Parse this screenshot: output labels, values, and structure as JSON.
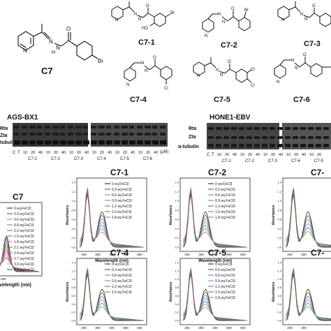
{
  "structures": {
    "C7": "C7",
    "C7_1": "C7-1",
    "C7_2": "C7-2",
    "C7_3": "C7-3",
    "C7_4": "C7-4",
    "C7_5": "C7-5",
    "C7_6": "C7-6",
    "atoms": {
      "N": "N",
      "H": "H",
      "O": "O",
      "Br": "Br",
      "HO": "HO",
      "Cl": "Cl"
    }
  },
  "blots": {
    "left": {
      "title": "AGS-BX1",
      "row_labels": [
        "Rta",
        "Zta",
        "tubulin"
      ],
      "dose_labels": [
        "10",
        "20",
        "40",
        "10",
        "20",
        "40",
        "10",
        "20",
        "40",
        "10",
        "20",
        "40",
        "10",
        "20",
        "40",
        "10",
        "20",
        "40"
      ],
      "unit": "(μM)",
      "group_labels": [
        "C7-1",
        "C7-2",
        "C7-3",
        "C7-4",
        "C7-5",
        "C7-6"
      ],
      "lane_left": "C",
      "lane_right": "T"
    },
    "right": {
      "title": "HONE1-EBV",
      "row_labels": [
        "Rta",
        "Zta",
        "α-tubulin"
      ],
      "dose_labels": [
        "10",
        "20",
        "40",
        "10",
        "20",
        "40",
        "10",
        "20",
        "40",
        "10",
        "20",
        "40",
        "10",
        "20"
      ],
      "group_labels": [
        "C7-1",
        "C7-2",
        "C7-3",
        "C7-4",
        "C7-5"
      ],
      "lane_left": "C",
      "lane_right": "T"
    }
  },
  "spectra": {
    "panels": [
      {
        "title": "C7",
        "ylabel": "",
        "xlabel": "avelength (nm)",
        "yticks": [],
        "xticks": [
          "500",
          "600"
        ],
        "legend": [
          "0 eq FeCl3",
          "0.3 eq FeCl3",
          "0.6 eq FeCl3",
          "0.9 eq FeCl3",
          "1.2 eq FeCl3",
          "1.5 eq FeCl3",
          "1.8 eq FeCl3",
          "2.1 eq FeCl3",
          "2.4 eq FeCl3",
          "2.7 eq FeCl3",
          "3.0 eq FeCl3",
          "3.3 eq FeCl3"
        ]
      },
      {
        "title": "C7-1",
        "ylabel": "Absorbance",
        "xlabel": "Wavelength (nm)",
        "yticks": [
          "0.0",
          "0.2",
          "0.4",
          "0.6",
          "0.8",
          "1.0",
          "1.2",
          "1.4"
        ],
        "xticks": [
          "200",
          "300",
          "400",
          "500",
          "600"
        ],
        "legend": [
          "0 eq FeCl3",
          "0.3 eq FeCl3",
          "0.6 eq FeCl3",
          "0.9 eq FeCl3",
          "1.2 eq FeCl3",
          "1.5 eq FeCl3",
          "1.8 eq FeCl3"
        ]
      },
      {
        "title": "C7-2",
        "ylabel": "Absorbance",
        "xlabel": "Wavelength (nm)",
        "yticks": [
          "0.0",
          "0.2",
          "0.4",
          "0.6",
          "0.8",
          "1.0",
          "1.2",
          "1.4"
        ],
        "xticks": [
          "200",
          "300",
          "400",
          "500",
          "600"
        ],
        "legend": [
          "0 eq FeCl3",
          "0.3 eq FeCl3",
          "0.6 eq FeCl3",
          "0.9 eq FeCl3",
          "1.2 eq FeCl3",
          "1.5 eq FeCl3",
          "1.8 eq FeCl3"
        ]
      },
      {
        "title": "C7-",
        "ylabel": "Absorbance",
        "xlabel": "",
        "yticks": [
          "0.0",
          "0.2",
          "0.4",
          "0.6",
          "0.8",
          "1.0",
          "1.2",
          "1.4"
        ],
        "xticks": [
          "200",
          "300"
        ],
        "legend": []
      },
      {
        "title": "C7-4",
        "ylabel": "Absorbance",
        "xlabel": "Wavelength (nm)",
        "yticks": [
          "0.0",
          "0.2",
          "0.4",
          "0.6",
          "0.8",
          "1.0",
          "1.2",
          "1.4"
        ],
        "xticks": [
          "200",
          "300",
          "400",
          "500",
          "600"
        ],
        "legend": [
          "0 eq FeCl3",
          "0.3 eq FeCl3",
          "0.6 eq FeCl3",
          "0.9 eq FeCl3",
          "1.2 eq FeCl3",
          "1.5 eq FeCl3"
        ]
      },
      {
        "title": "C7-5",
        "ylabel": "Absorbance",
        "xlabel": "Wavelength (nm)",
        "yticks": [
          "0.0",
          "0.2",
          "0.4",
          "0.6",
          "0.8",
          "1.0",
          "1.2",
          "1.4"
        ],
        "xticks": [
          "200",
          "300",
          "400",
          "500",
          "600"
        ],
        "legend": [
          "0 eq FeCl3",
          "0.3 eq FeCl3",
          "0.6 eq FeCl3",
          "0.9 eq FeCl3",
          "1.2 eq FeCl3",
          "1.5 eq FeCl3",
          "1.8 eq FeCl3"
        ]
      },
      {
        "title": "C7-",
        "ylabel": "Absorbance",
        "xlabel": "",
        "yticks": [
          "0.0",
          "0.2",
          "0.4",
          "0.6",
          "0.8",
          "1.0",
          "1.2",
          "1.4"
        ],
        "xticks": [
          "200",
          "300"
        ],
        "legend": []
      }
    ],
    "series_colors": [
      "#111111",
      "#6d3f2a",
      "#8a6fb0",
      "#5b88c8",
      "#2f7f7f",
      "#7a7a2a",
      "#c06090",
      "#b04020",
      "#9966cc",
      "#ff66aa",
      "#cc9966",
      "#444444"
    ]
  }
}
